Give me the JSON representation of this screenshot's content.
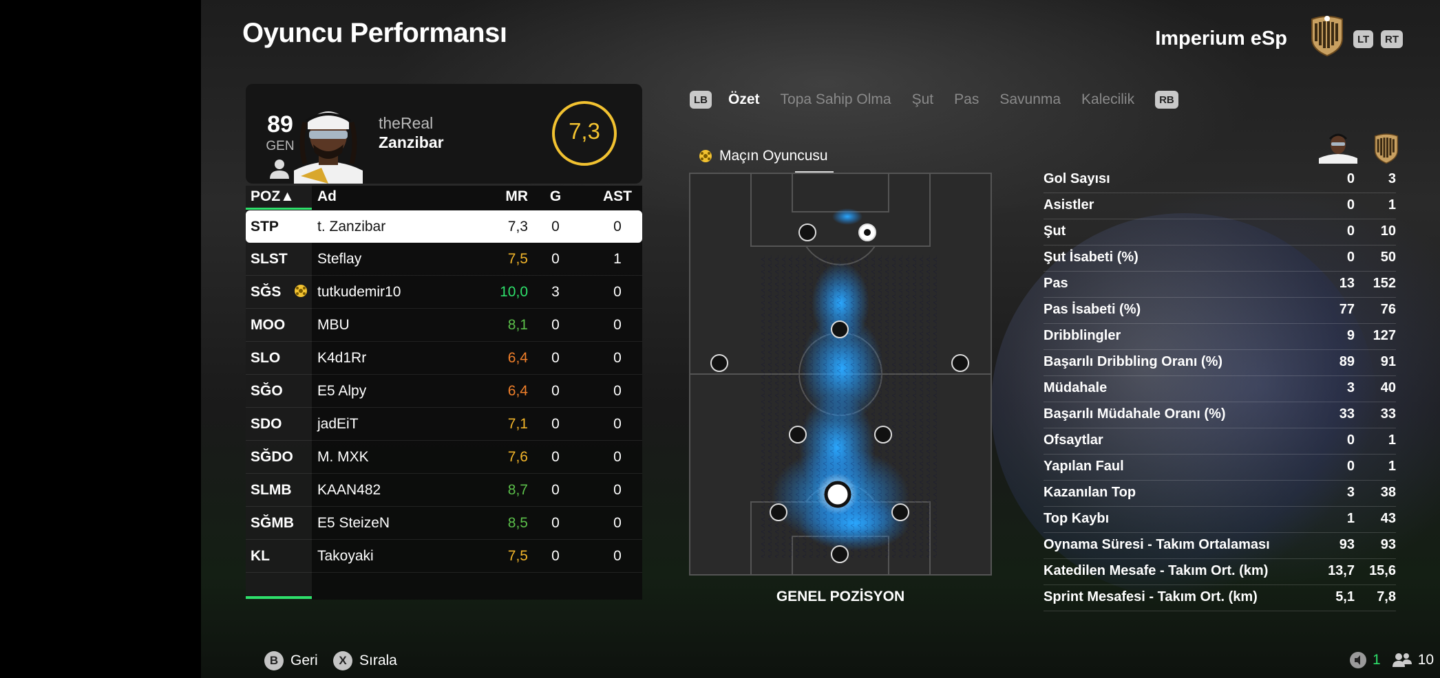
{
  "header": {
    "title": "Oyuncu Performansı",
    "team_name": "Imperium eSp",
    "lt_label": "LT",
    "rt_label": "RT"
  },
  "player_card": {
    "overall": "89",
    "overall_label": "GEN",
    "name_line1": "theReal",
    "name_line2": "Zanzibar",
    "match_rating": "7,3",
    "rating_color": "#f2c230"
  },
  "table": {
    "headers": {
      "pos": "POZ▲",
      "name": "Ad",
      "mr": "MR",
      "g": "G",
      "ast": "AST"
    },
    "rows": [
      {
        "pos": "STP",
        "name": "t. Zanzibar",
        "mr": "7,3",
        "g": "0",
        "ast": "0",
        "mr_color": "#111111",
        "selected": true
      },
      {
        "pos": "SLST",
        "name": "Steflay",
        "mr": "7,5",
        "g": "0",
        "ast": "1",
        "mr_color": "#f2b52a"
      },
      {
        "pos": "SĞS",
        "name": "tutkudemir10",
        "mr": "10,0",
        "g": "3",
        "ast": "0",
        "mr_color": "#2ee06b",
        "motm": true
      },
      {
        "pos": "MOO",
        "name": "MBU",
        "mr": "8,1",
        "g": "0",
        "ast": "0",
        "mr_color": "#5bbf4a"
      },
      {
        "pos": "SLO",
        "name": "K4d1Rr",
        "mr": "6,4",
        "g": "0",
        "ast": "0",
        "mr_color": "#f07f2a"
      },
      {
        "pos": "SĞO",
        "name": "E5 Alpy",
        "mr": "6,4",
        "g": "0",
        "ast": "0",
        "mr_color": "#f07f2a"
      },
      {
        "pos": "SDO",
        "name": "jadEiT",
        "mr": "7,1",
        "g": "0",
        "ast": "0",
        "mr_color": "#f2b52a"
      },
      {
        "pos": "SĞDO",
        "name": "M. MXK",
        "mr": "7,6",
        "g": "0",
        "ast": "0",
        "mr_color": "#f2b52a"
      },
      {
        "pos": "SLMB",
        "name": "KAAN482",
        "mr": "8,7",
        "g": "0",
        "ast": "0",
        "mr_color": "#5bbf4a"
      },
      {
        "pos": "SĞMB",
        "name": "E5 SteizeN",
        "mr": "8,5",
        "g": "0",
        "ast": "0",
        "mr_color": "#5bbf4a"
      },
      {
        "pos": "KL",
        "name": "Takoyaki",
        "mr": "7,5",
        "g": "0",
        "ast": "0",
        "mr_color": "#f2b52a"
      }
    ]
  },
  "tabs": {
    "lb": "LB",
    "rb": "RB",
    "items": [
      "Özet",
      "Topa Sahip Olma",
      "Şut",
      "Pas",
      "Savunma",
      "Kalecilik"
    ],
    "active_index": 0
  },
  "pitch": {
    "motm_label": "Maçın Oyuncusu",
    "caption": "GENEL POZİSYON",
    "heat_color": "#1e90ff"
  },
  "stats": [
    {
      "label": "Gol Sayısı",
      "player": "0",
      "team": "3"
    },
    {
      "label": "Asistler",
      "player": "0",
      "team": "1"
    },
    {
      "label": "Şut",
      "player": "0",
      "team": "10"
    },
    {
      "label": "Şut İsabeti (%)",
      "player": "0",
      "team": "50"
    },
    {
      "label": "Pas",
      "player": "13",
      "team": "152"
    },
    {
      "label": "Pas İsabeti (%)",
      "player": "77",
      "team": "76"
    },
    {
      "label": "Dribblingler",
      "player": "9",
      "team": "127"
    },
    {
      "label": "Başarılı Dribbling Oranı (%)",
      "player": "89",
      "team": "91"
    },
    {
      "label": "Müdahale",
      "player": "3",
      "team": "40"
    },
    {
      "label": "Başarılı Müdahale Oranı (%)",
      "player": "33",
      "team": "33"
    },
    {
      "label": "Ofsaytlar",
      "player": "0",
      "team": "1"
    },
    {
      "label": "Yapılan Faul",
      "player": "0",
      "team": "1"
    },
    {
      "label": "Kazanılan Top",
      "player": "3",
      "team": "38"
    },
    {
      "label": "Top Kaybı",
      "player": "1",
      "team": "43"
    },
    {
      "label": "Oynama Süresi - Takım Ortalaması",
      "player": "93",
      "team": "93"
    },
    {
      "label": "Katedilen Mesafe - Takım Ort. (km)",
      "player": "13,7",
      "team": "15,6"
    },
    {
      "label": "Sprint Mesafesi - Takım Ort. (km)",
      "player": "5,1",
      "team": "7,8"
    }
  ],
  "footer": {
    "back_key": "B",
    "back_label": "Geri",
    "sort_key": "X",
    "sort_label": "Sırala",
    "mic_count": "1",
    "players_count": "10",
    "mic_color": "#2ee06b"
  }
}
